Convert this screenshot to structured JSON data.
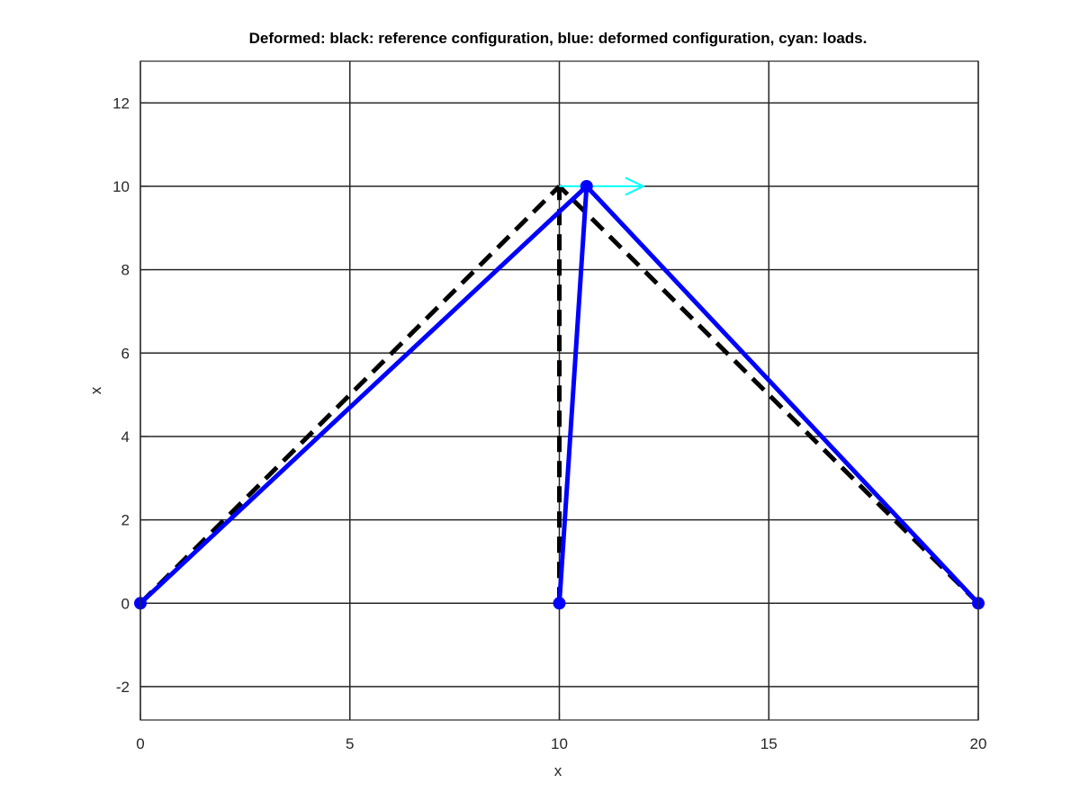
{
  "chart_data": {
    "type": "line",
    "title": "Deformed: black: reference configuration, blue: deformed configuration, cyan: loads.",
    "xlabel": "x",
    "ylabel": "x",
    "xlim": [
      0,
      20
    ],
    "ylim": [
      -2.8,
      13
    ],
    "xticks": [
      0,
      5,
      10,
      15,
      20
    ],
    "yticks": [
      -2,
      0,
      2,
      4,
      6,
      8,
      10,
      12
    ],
    "grid": true,
    "colors": {
      "reference": "#000000",
      "deformed": "#0000ff",
      "loads": "#00ffff"
    },
    "reference_members": [
      [
        [
          0,
          0
        ],
        [
          10,
          10
        ]
      ],
      [
        [
          10,
          0
        ],
        [
          10,
          10
        ]
      ],
      [
        [
          20,
          0
        ],
        [
          10,
          10
        ]
      ]
    ],
    "deformed_members": [
      [
        [
          0,
          0
        ],
        [
          10.65,
          10
        ]
      ],
      [
        [
          10,
          0
        ],
        [
          10.65,
          10
        ]
      ],
      [
        [
          20,
          0
        ],
        [
          10.65,
          10
        ]
      ]
    ],
    "deformed_nodes": [
      [
        0,
        0
      ],
      [
        10,
        0
      ],
      [
        20,
        0
      ],
      [
        10.65,
        10
      ]
    ],
    "loads": [
      {
        "from": [
          10,
          10
        ],
        "to": [
          12,
          10
        ]
      }
    ]
  }
}
